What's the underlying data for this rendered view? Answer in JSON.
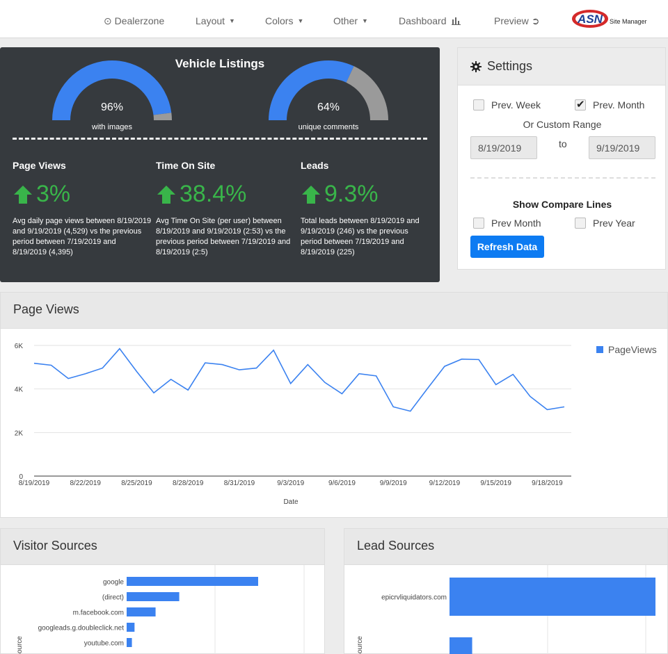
{
  "nav": {
    "dealerzone": "Dealerzone",
    "layout": "Layout",
    "colors": "Colors",
    "other": "Other",
    "dashboard": "Dashboard",
    "preview": "Preview",
    "brand_text": "Site Manager",
    "brand_logo": "ASN"
  },
  "vehicle": {
    "title": "Vehicle Listings",
    "gauge1": {
      "pct": "96%",
      "caption": "with images",
      "value": 0.96
    },
    "gauge2": {
      "pct": "64%",
      "caption": "unique comments",
      "value": 0.64
    },
    "colors": {
      "fill": "#3b82f0",
      "rest": "#9a9a9a"
    }
  },
  "metrics": [
    {
      "title": "Page Views",
      "value": "3%",
      "desc": "Avg daily page views between 8/19/2019 and 9/19/2019 (4,529) vs the previous period between 7/19/2019 and 8/19/2019 (4,395)"
    },
    {
      "title": "Time On Site",
      "value": "38.4%",
      "desc": "Avg Time On Site (per user) between 8/19/2019 and 9/19/2019 (2:53) vs the previous period between 7/19/2019 and 8/19/2019 (2:5)"
    },
    {
      "title": "Leads",
      "value": "9.3%",
      "desc": "Total leads between 8/19/2019 and 9/19/2019 (246) vs the previous period between 7/19/2019 and 8/19/2019 (225)"
    }
  ],
  "settings": {
    "title": "Settings",
    "prev_week": "Prev. Week",
    "prev_month": "Prev. Month",
    "custom_range": "Or Custom Range",
    "from_date": "8/19/2019",
    "to_label": "to",
    "to_date": "9/19/2019",
    "show_compare": "Show Compare Lines",
    "compare_prev_month": "Prev Month",
    "compare_prev_year": "Prev Year",
    "refresh": "Refresh Data"
  },
  "page_views": {
    "title": "Page Views"
  },
  "visitor_sources": {
    "title": "Visitor Sources",
    "axis": "Source"
  },
  "lead_sources": {
    "title": "Lead Sources",
    "axis": "Source"
  },
  "chart_data": [
    {
      "type": "line",
      "xlabel": "Date",
      "ylabel": "",
      "ylim": [
        0,
        6000
      ],
      "yticks": [
        0,
        2000,
        4000,
        6000
      ],
      "ytick_labels": [
        "0",
        "2K",
        "4K",
        "6K"
      ],
      "xtick_labels": [
        "8/19/2019",
        "8/22/2019",
        "8/25/2019",
        "8/28/2019",
        "8/31/2019",
        "9/3/2019",
        "9/6/2019",
        "9/9/2019",
        "9/12/2019",
        "9/15/2019",
        "9/18/2019"
      ],
      "legend": "right",
      "color": "#3b82f0",
      "series": [
        {
          "name": "PageViews",
          "values": [
            5180,
            5090,
            4480,
            4700,
            4960,
            5850,
            4800,
            3820,
            4440,
            3950,
            5200,
            5120,
            4880,
            4960,
            5780,
            4250,
            5120,
            4300,
            3780,
            4700,
            4600,
            3180,
            2980,
            4020,
            5040,
            5370,
            5350,
            4200,
            4670,
            3660,
            3050,
            3180
          ]
        }
      ]
    },
    {
      "type": "bar",
      "orientation": "horizontal",
      "categories": [
        "google",
        "(direct)",
        "m.facebook.com",
        "googleads.g.doubleclick.net",
        "youtube.com"
      ],
      "values": [
        100,
        40,
        22,
        6,
        4
      ],
      "color": "#3b82f0"
    },
    {
      "type": "bar",
      "orientation": "horizontal",
      "categories": [
        "epicrvliquidators.com",
        ""
      ],
      "values": [
        100,
        11
      ],
      "color": "#3b82f0"
    }
  ]
}
